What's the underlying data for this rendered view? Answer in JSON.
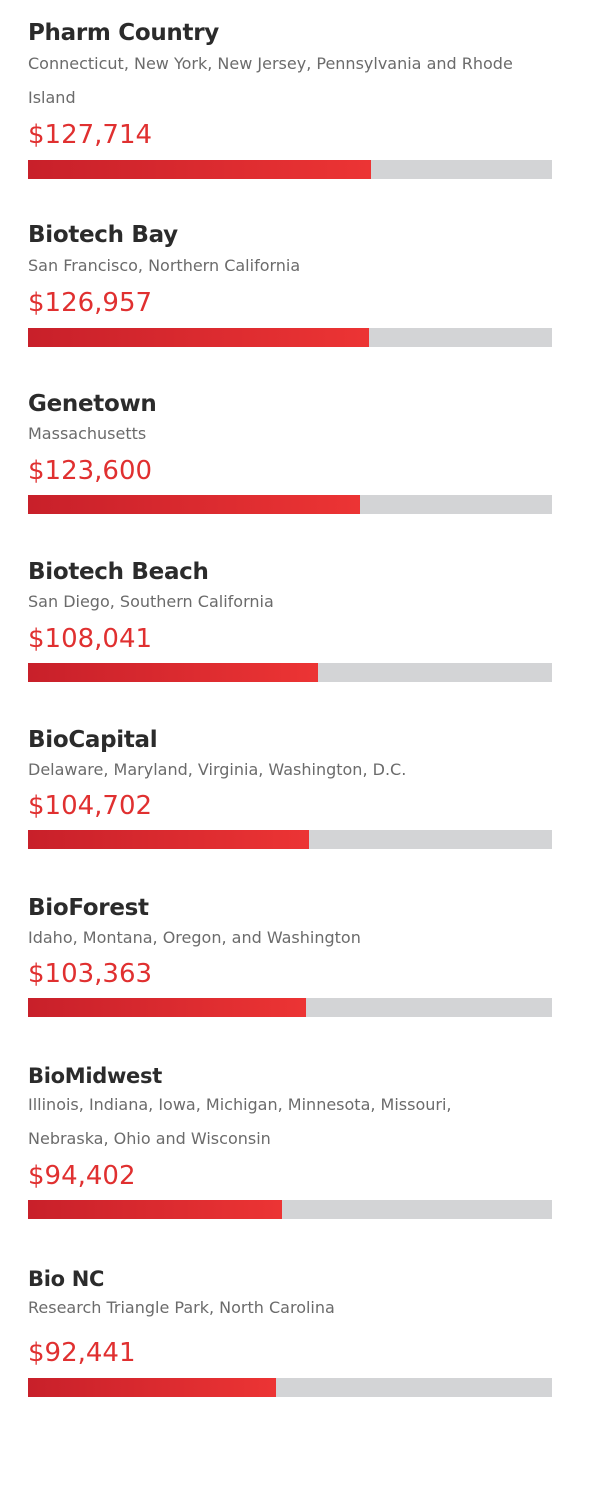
{
  "colors": {
    "accent": "#e03030",
    "bar_start": "#c8202a",
    "bar_end": "#ec3434",
    "track": "#d3d4d6",
    "title_text": "#2b2b2b",
    "subtitle_text": "#6b6b6b"
  },
  "chart_data": {
    "type": "bar",
    "orientation": "horizontal",
    "title": "",
    "xlabel": "",
    "ylabel": "",
    "xlim": [
      0,
      195000
    ],
    "grid": false,
    "legend": "none",
    "categories": [
      "Pharm Country",
      "Biotech Bay",
      "Genetown",
      "Biotech Beach",
      "BioCapital",
      "BioForest",
      "BioMidwest",
      "Bio NC"
    ],
    "values": [
      127714,
      126957,
      123600,
      108041,
      104702,
      103363,
      94402,
      92441
    ],
    "items": [
      {
        "name": "Pharm Country",
        "region": "Connecticut, New York, New Jersey, Pennsylvania and Rhode Island",
        "value": 127714,
        "value_label": "$127,714"
      },
      {
        "name": "Biotech Bay",
        "region": "San Francisco, Northern California",
        "value": 126957,
        "value_label": "$126,957"
      },
      {
        "name": "Genetown",
        "region": "Massachusetts",
        "value": 123600,
        "value_label": "$123,600"
      },
      {
        "name": "Biotech Beach",
        "region": "San Diego, Southern California",
        "value": 108041,
        "value_label": "$108,041"
      },
      {
        "name": "BioCapital",
        "region": "Delaware, Maryland, Virginia, Washington, D.C.",
        "value": 104702,
        "value_label": "$104,702"
      },
      {
        "name": "BioForest",
        "region": "Idaho, Montana, Oregon, and Washington",
        "value": 103363,
        "value_label": "$103,363"
      },
      {
        "name": "BioMidwest",
        "region": "Illinois, Indiana, Iowa, Michigan, Minnesota, Missouri, Nebraska, Ohio and Wisconsin",
        "value": 94402,
        "value_label": "$94,402"
      },
      {
        "name": "Bio NC",
        "region": "Research Triangle Park, North Carolina",
        "value": 92441,
        "value_label": "$92,441"
      }
    ]
  }
}
